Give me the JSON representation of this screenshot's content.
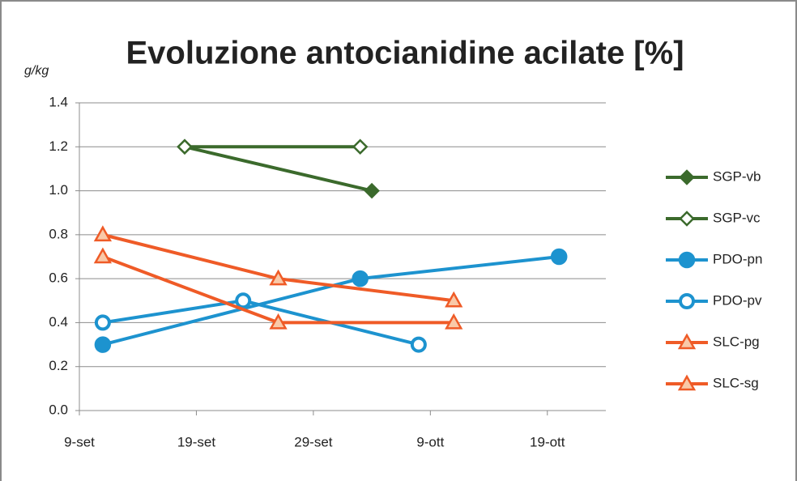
{
  "chart_data": {
    "type": "line",
    "title": "Evoluzione antocianidine acilate [%]",
    "y_label": "g/kg",
    "xlim": [
      9,
      54
    ],
    "xticks": [
      {
        "value": 9,
        "label": "9-set"
      },
      {
        "value": 19,
        "label": "19-set"
      },
      {
        "value": 29,
        "label": "29-set"
      },
      {
        "value": 39,
        "label": "9-ott"
      },
      {
        "value": 49,
        "label": "19-ott"
      }
    ],
    "ylim": [
      0,
      1.4
    ],
    "yticks": [
      {
        "value": 0,
        "label": "0.0"
      },
      0.2,
      0.4,
      0.6,
      0.8,
      {
        "value": 1,
        "label": "1.0"
      },
      1.2,
      1.4
    ],
    "grid": true,
    "legend": "right",
    "series": [
      {
        "name": "SGP-vb",
        "color": "#3b6a2c",
        "marker": "diamond",
        "filled": true,
        "x": [
          18,
          34
        ],
        "values": [
          1.2,
          1.0
        ]
      },
      {
        "name": "SGP-vc",
        "color": "#3b6a2c",
        "marker": "diamond",
        "filled": false,
        "x": [
          18,
          33
        ],
        "values": [
          1.2,
          1.2
        ]
      },
      {
        "name": "PDO-pn",
        "color": "#1d93cf",
        "marker": "circle",
        "filled": true,
        "x": [
          11,
          33,
          50
        ],
        "values": [
          0.3,
          0.6,
          0.7
        ]
      },
      {
        "name": "PDO-pv",
        "color": "#1d93cf",
        "marker": "circle",
        "filled": false,
        "x": [
          11,
          23,
          38
        ],
        "values": [
          0.4,
          0.5,
          0.3
        ]
      },
      {
        "name": "SLC-pg",
        "color": "#ef5b27",
        "marker": "triangle",
        "filled": false,
        "x": [
          11,
          26,
          41
        ],
        "values": [
          0.8,
          0.6,
          0.5
        ]
      },
      {
        "name": "SLC-sg",
        "color": "#ef5b27",
        "marker": "triangle",
        "filled": false,
        "x": [
          11,
          26,
          41
        ],
        "values": [
          0.7,
          0.4,
          0.4
        ]
      }
    ]
  }
}
